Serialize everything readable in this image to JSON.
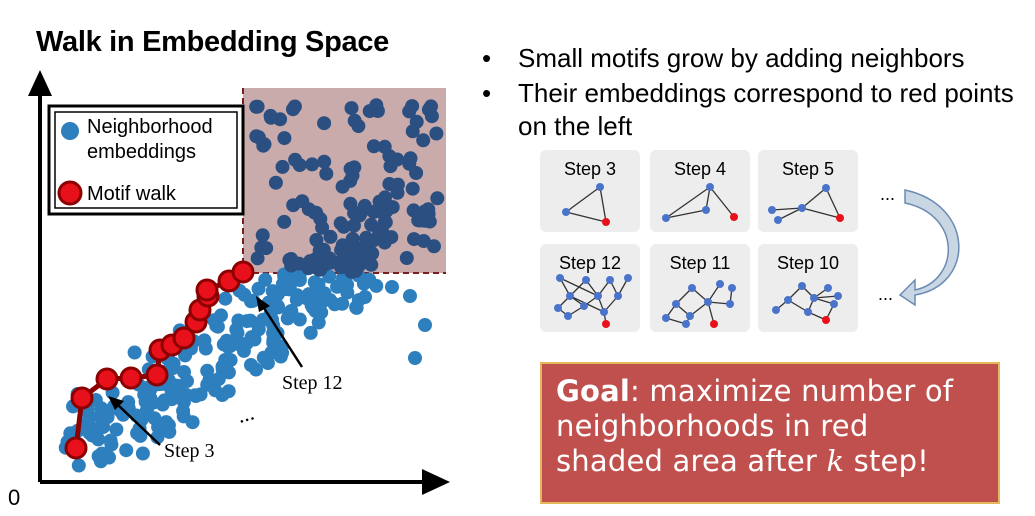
{
  "title": "Walk in Embedding Space",
  "origin_label": "0",
  "legend": {
    "neighborhood_label_line1": "Neighborhood",
    "neighborhood_label_line2": "embeddings",
    "motif_label": "Motif walk",
    "neighborhood_color": "#2e7fbd",
    "motif_color": "#e8111b"
  },
  "annotations": {
    "step3": "Step 3",
    "step12": "Step 12",
    "ellipsis": "..."
  },
  "bullets": [
    "Small motifs grow by adding neighbors",
    "Their embeddings correspond to red points on the left"
  ],
  "steps_panels": {
    "top": [
      "Step 3",
      "Step 4",
      "Step 5"
    ],
    "bottom": [
      "Step 12",
      "Step 11",
      "Step 10"
    ],
    "ellipsis": "..."
  },
  "goal": {
    "bold": "Goal",
    "text1": ": maximize number of neighborhoods in red shaded area after ",
    "var": "k",
    "text2": " step!"
  },
  "colors": {
    "shade": "#b88f90",
    "goal_bg": "#c0504d",
    "node_blue": "#4a74c9",
    "node_red": "#e8111b"
  }
}
